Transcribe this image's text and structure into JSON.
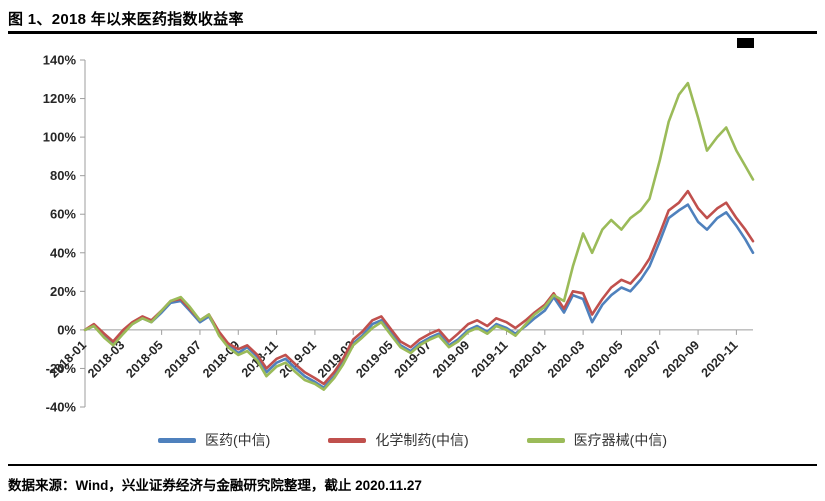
{
  "page": {
    "title": "图 1、2018 年以来医药指数收益率",
    "source_note": "数据来源：Wind，兴业证券经济与金融研究院整理，截止 2020.11.27"
  },
  "chart_data": {
    "type": "line",
    "title": "2018 年以来医药指数收益率",
    "xlabel": "",
    "ylabel": "",
    "grid": false,
    "legend_position": "bottom",
    "ylim": [
      -40,
      140
    ],
    "y_ticks": [
      140,
      120,
      100,
      80,
      60,
      40,
      20,
      0,
      -20,
      -40
    ],
    "y_tick_suffix": "%",
    "x_tick_labels": [
      "2018-01",
      "2018-03",
      "2018-05",
      "2018-07",
      "2018-09",
      "2018-11",
      "2019-01",
      "2019-03",
      "2019-05",
      "2019-07",
      "2019-09",
      "2019-11",
      "2020-01",
      "2020-03",
      "2020-05",
      "2020-07",
      "2020-09",
      "2020-11"
    ],
    "x": [
      "2018-01-01",
      "2018-01-15",
      "2018-02-01",
      "2018-02-15",
      "2018-03-01",
      "2018-03-15",
      "2018-04-01",
      "2018-04-15",
      "2018-05-01",
      "2018-05-15",
      "2018-06-01",
      "2018-06-15",
      "2018-07-01",
      "2018-07-15",
      "2018-08-01",
      "2018-08-15",
      "2018-09-01",
      "2018-09-15",
      "2018-10-01",
      "2018-10-15",
      "2018-11-01",
      "2018-11-15",
      "2018-12-01",
      "2018-12-15",
      "2019-01-01",
      "2019-01-15",
      "2019-02-01",
      "2019-02-15",
      "2019-03-01",
      "2019-03-15",
      "2019-04-01",
      "2019-04-15",
      "2019-05-01",
      "2019-05-15",
      "2019-06-01",
      "2019-06-15",
      "2019-07-01",
      "2019-07-15",
      "2019-08-01",
      "2019-08-15",
      "2019-09-01",
      "2019-09-15",
      "2019-10-01",
      "2019-10-15",
      "2019-11-01",
      "2019-11-15",
      "2019-12-01",
      "2019-12-15",
      "2020-01-01",
      "2020-01-15",
      "2020-02-01",
      "2020-02-15",
      "2020-03-01",
      "2020-03-15",
      "2020-04-01",
      "2020-04-15",
      "2020-05-01",
      "2020-05-15",
      "2020-06-01",
      "2020-06-15",
      "2020-07-01",
      "2020-07-15",
      "2020-08-01",
      "2020-08-15",
      "2020-09-01",
      "2020-09-15",
      "2020-10-01",
      "2020-10-15",
      "2020-11-01",
      "2020-11-15",
      "2020-11-27"
    ],
    "series": [
      {
        "name": "医药(中信)",
        "color": "#4F81BD",
        "values": [
          0,
          2,
          -3,
          -7,
          -1,
          3,
          6,
          4,
          9,
          14,
          15,
          10,
          4,
          7,
          -2,
          -8,
          -12,
          -9,
          -14,
          -22,
          -17,
          -15,
          -20,
          -24,
          -27,
          -30,
          -24,
          -17,
          -7,
          -3,
          3,
          5,
          -2,
          -8,
          -11,
          -7,
          -4,
          -2,
          -8,
          -5,
          0,
          2,
          -1,
          3,
          1,
          -2,
          2,
          6,
          10,
          17,
          9,
          18,
          16,
          4,
          13,
          18,
          22,
          20,
          26,
          33,
          46,
          58,
          62,
          65,
          56,
          52,
          58,
          61,
          54,
          47,
          40
        ]
      },
      {
        "name": "化学制药(中信)",
        "color": "#C0504D",
        "values": [
          0,
          3,
          -2,
          -6,
          0,
          4,
          7,
          5,
          10,
          15,
          16,
          11,
          5,
          8,
          -1,
          -7,
          -10,
          -8,
          -13,
          -20,
          -15,
          -13,
          -18,
          -22,
          -25,
          -28,
          -22,
          -15,
          -5,
          -1,
          5,
          7,
          0,
          -6,
          -9,
          -5,
          -2,
          0,
          -6,
          -2,
          3,
          5,
          2,
          6,
          4,
          1,
          5,
          9,
          13,
          19,
          11,
          20,
          19,
          8,
          16,
          22,
          26,
          24,
          30,
          37,
          50,
          62,
          66,
          72,
          63,
          58,
          63,
          66,
          58,
          52,
          46
        ]
      },
      {
        "name": "医疗器械(中信)",
        "color": "#9BBB59",
        "values": [
          0,
          2,
          -4,
          -8,
          -2,
          3,
          6,
          4,
          10,
          15,
          17,
          12,
          5,
          8,
          -3,
          -9,
          -13,
          -11,
          -16,
          -24,
          -19,
          -17,
          -22,
          -26,
          -28,
          -31,
          -25,
          -18,
          -8,
          -4,
          1,
          4,
          -3,
          -9,
          -12,
          -8,
          -5,
          -3,
          -9,
          -6,
          -1,
          1,
          -2,
          2,
          0,
          -3,
          3,
          8,
          12,
          18,
          15,
          33,
          50,
          40,
          52,
          57,
          52,
          58,
          62,
          68,
          88,
          108,
          122,
          128,
          110,
          93,
          100,
          105,
          93,
          85,
          78
        ]
      }
    ],
    "axis_color": "#9e9e9e",
    "tick_label_color": "#262626"
  }
}
